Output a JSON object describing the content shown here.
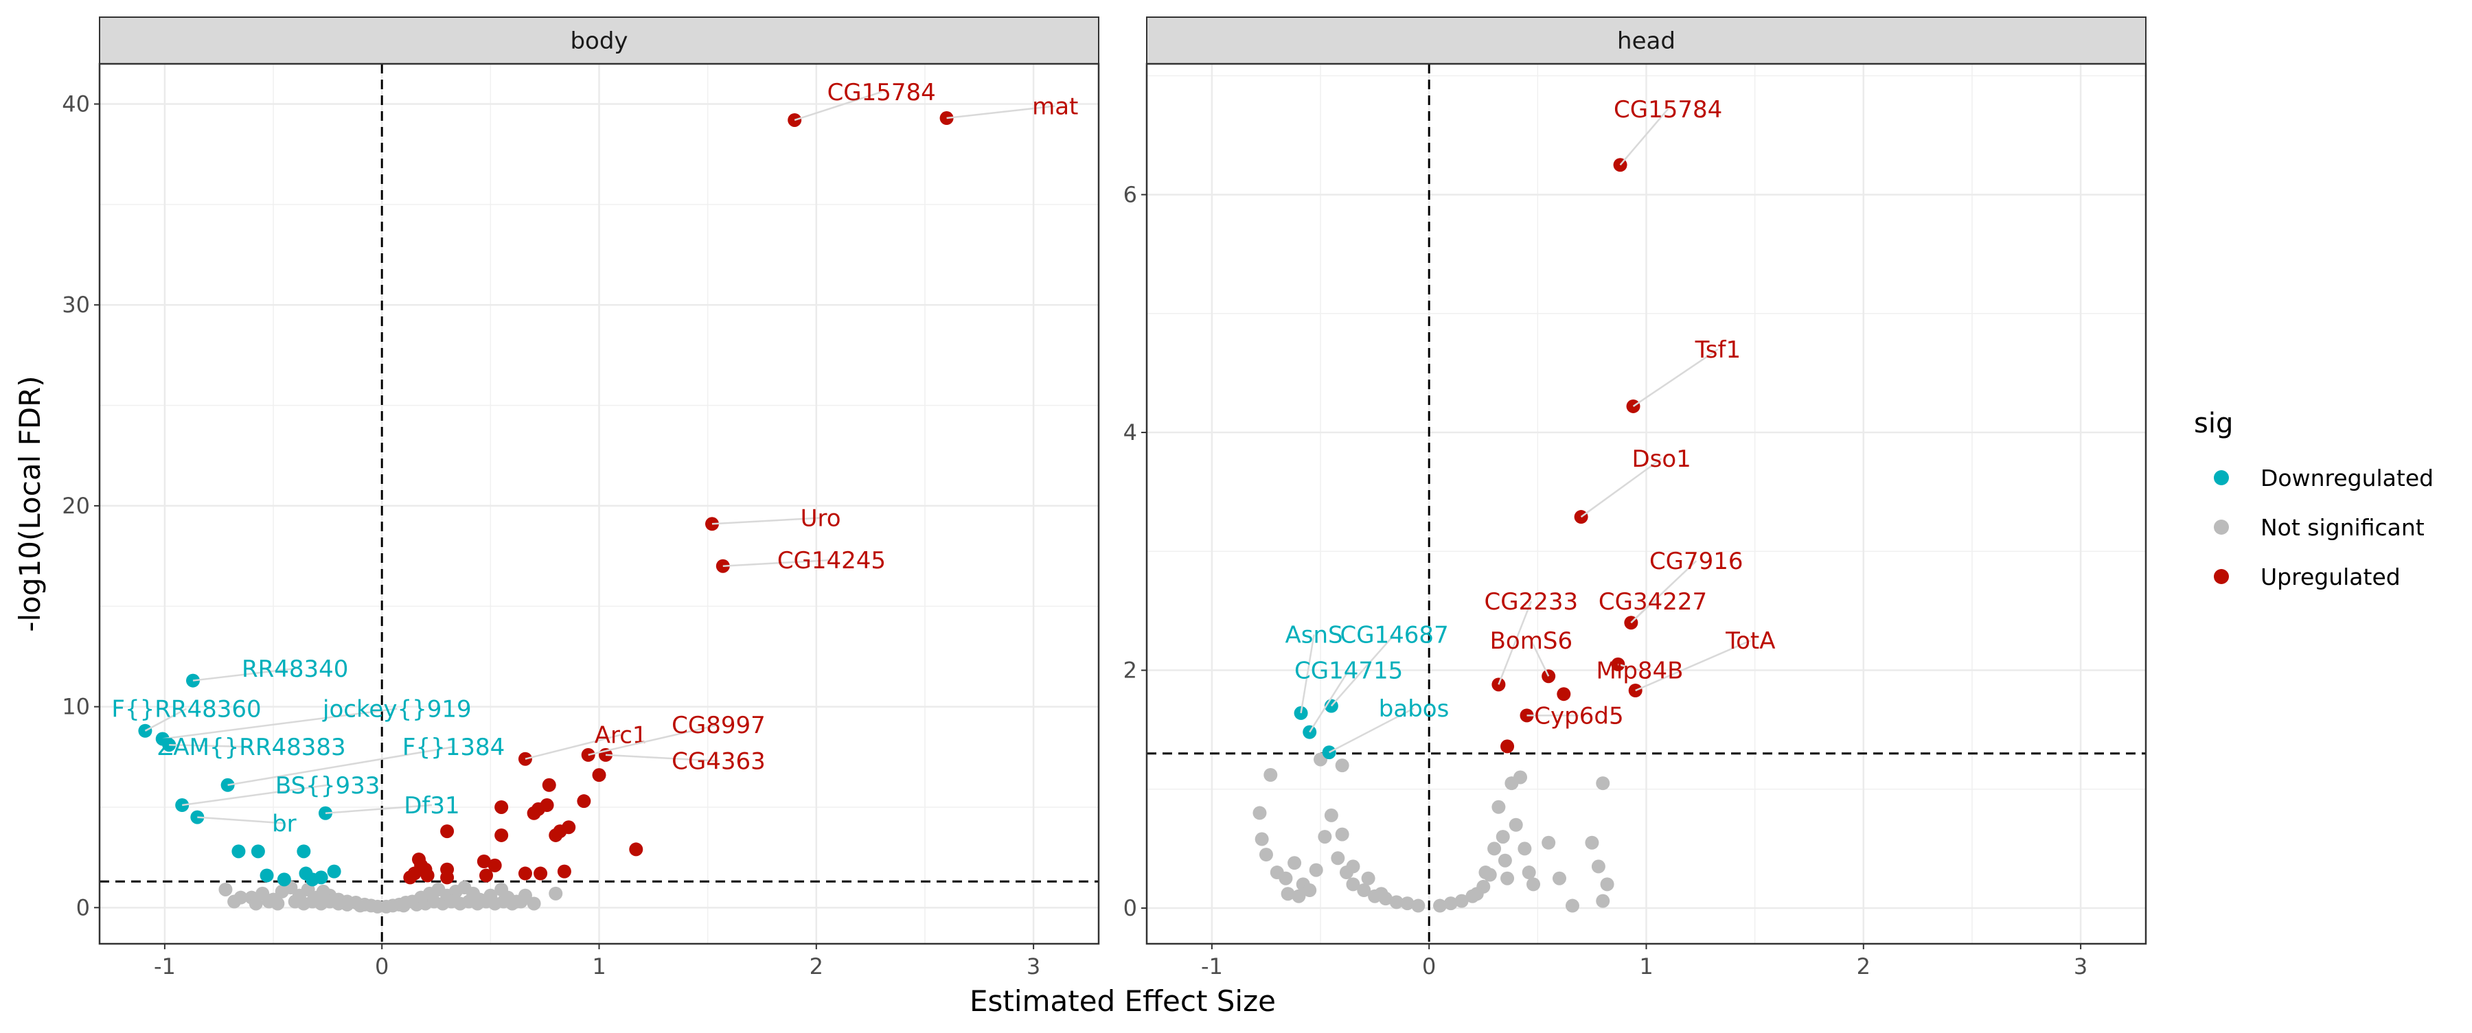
{
  "chart_data": {
    "type": "scatter",
    "xlabel": "Estimated Effect Size",
    "ylabel": "-log10(Local FDR)",
    "legend": {
      "title": "sig",
      "position": "right",
      "entries": [
        {
          "name": "Downregulated",
          "color": "#00AFBB"
        },
        {
          "name": "Not significant",
          "color": "#BBBBBB"
        },
        {
          "name": "Upregulated",
          "color": "#BB0C00"
        }
      ]
    },
    "grid": true,
    "reference_lines": {
      "vertical_x": 0,
      "horizontal_y": 1.3
    },
    "panels": [
      {
        "strip": "body",
        "xlim": [
          -1.3,
          3.3
        ],
        "ylim": [
          -1.8,
          42
        ],
        "xticks": [
          "-1",
          "0",
          "1",
          "2",
          "3"
        ],
        "yticks": [
          "0",
          "10",
          "20",
          "30",
          "40"
        ],
        "xtick_values": [
          -1,
          0,
          1,
          2,
          3
        ],
        "ytick_values": [
          0,
          10,
          20,
          30,
          40
        ],
        "points": {
          "Upregulated": [
            [
              1.9,
              39.2
            ],
            [
              2.6,
              39.3
            ],
            [
              1.52,
              19.1
            ],
            [
              1.57,
              17.0
            ],
            [
              0.95,
              7.6
            ],
            [
              1.03,
              7.6
            ],
            [
              0.66,
              7.4
            ],
            [
              0.77,
              6.1
            ],
            [
              0.86,
              4.0
            ],
            [
              0.82,
              3.8
            ],
            [
              0.76,
              5.1
            ],
            [
              0.7,
              4.7
            ],
            [
              0.72,
              4.9
            ],
            [
              0.8,
              3.6
            ],
            [
              0.93,
              5.3
            ],
            [
              1.0,
              6.6
            ],
            [
              0.55,
              5.0
            ],
            [
              0.55,
              3.6
            ],
            [
              0.3,
              3.8
            ],
            [
              0.17,
              2.4
            ],
            [
              0.18,
              2.1
            ],
            [
              0.2,
              1.9
            ],
            [
              0.15,
              1.7
            ],
            [
              0.3,
              1.9
            ],
            [
              0.47,
              2.3
            ],
            [
              0.52,
              2.1
            ],
            [
              0.48,
              1.6
            ],
            [
              0.66,
              1.7
            ],
            [
              0.73,
              1.7
            ],
            [
              0.84,
              1.8
            ],
            [
              1.17,
              2.9
            ],
            [
              0.3,
              1.5
            ],
            [
              0.13,
              1.5
            ],
            [
              0.21,
              1.6
            ]
          ],
          "Downregulated": [
            [
              -0.87,
              11.3
            ],
            [
              -1.09,
              8.8
            ],
            [
              -1.01,
              8.4
            ],
            [
              -0.98,
              8.1
            ],
            [
              -0.71,
              6.1
            ],
            [
              -0.92,
              5.1
            ],
            [
              -0.85,
              4.5
            ],
            [
              -0.26,
              4.7
            ],
            [
              -0.66,
              2.8
            ],
            [
              -0.57,
              2.8
            ],
            [
              -0.36,
              2.8
            ],
            [
              -0.53,
              1.6
            ],
            [
              -0.35,
              1.7
            ],
            [
              -0.22,
              1.8
            ],
            [
              -0.32,
              1.4
            ],
            [
              -0.28,
              1.5
            ],
            [
              -0.45,
              1.4
            ]
          ],
          "Not significant": [
            [
              -0.72,
              0.9
            ],
            [
              -0.68,
              0.3
            ],
            [
              -0.6,
              0.5
            ],
            [
              -0.55,
              0.7
            ],
            [
              -0.5,
              0.4
            ],
            [
              -0.46,
              0.8
            ],
            [
              -0.42,
              1.0
            ],
            [
              -0.38,
              0.6
            ],
            [
              -0.34,
              0.9
            ],
            [
              -0.3,
              0.5
            ],
            [
              -0.27,
              0.8
            ],
            [
              -0.24,
              0.6
            ],
            [
              -0.2,
              0.4
            ],
            [
              -0.16,
              0.3
            ],
            [
              -0.12,
              0.25
            ],
            [
              -0.08,
              0.15
            ],
            [
              -0.05,
              0.1
            ],
            [
              -0.02,
              0.05
            ],
            [
              0.02,
              0.05
            ],
            [
              0.05,
              0.1
            ],
            [
              0.08,
              0.15
            ],
            [
              0.11,
              0.25
            ],
            [
              0.14,
              0.3
            ],
            [
              0.18,
              0.5
            ],
            [
              0.22,
              0.7
            ],
            [
              0.26,
              0.9
            ],
            [
              0.3,
              0.6
            ],
            [
              0.34,
              0.8
            ],
            [
              0.38,
              1.0
            ],
            [
              0.42,
              0.7
            ],
            [
              0.45,
              0.4
            ],
            [
              0.5,
              0.6
            ],
            [
              0.55,
              0.9
            ],
            [
              0.58,
              0.5
            ],
            [
              0.62,
              0.3
            ],
            [
              0.66,
              0.6
            ],
            [
              0.7,
              0.2
            ],
            [
              0.8,
              0.7
            ],
            [
              -0.65,
              0.5
            ],
            [
              -0.58,
              0.2
            ],
            [
              -0.52,
              0.3
            ],
            [
              -0.48,
              0.2
            ],
            [
              -0.4,
              0.3
            ],
            [
              -0.36,
              0.2
            ],
            [
              -0.32,
              0.3
            ],
            [
              -0.28,
              0.2
            ],
            [
              -0.24,
              0.3
            ],
            [
              -0.2,
              0.2
            ],
            [
              -0.16,
              0.15
            ],
            [
              -0.1,
              0.1
            ],
            [
              0.1,
              0.1
            ],
            [
              0.16,
              0.15
            ],
            [
              0.2,
              0.2
            ],
            [
              0.24,
              0.3
            ],
            [
              0.28,
              0.2
            ],
            [
              0.32,
              0.3
            ],
            [
              0.36,
              0.2
            ],
            [
              0.4,
              0.3
            ],
            [
              0.44,
              0.2
            ],
            [
              0.48,
              0.3
            ],
            [
              0.52,
              0.2
            ],
            [
              0.56,
              0.3
            ],
            [
              0.6,
              0.2
            ],
            [
              0.64,
              0.3
            ]
          ]
        },
        "labels": [
          {
            "text": "CG15784",
            "color": "#BB0C00",
            "x": 1.9,
            "y": 39.2,
            "lx": 2.3,
            "ly": 40.6
          },
          {
            "text": "mat",
            "color": "#BB0C00",
            "x": 2.6,
            "y": 39.3,
            "lx": 3.1,
            "ly": 39.9
          },
          {
            "text": "Uro",
            "color": "#BB0C00",
            "x": 1.52,
            "y": 19.1,
            "lx": 2.02,
            "ly": 19.4
          },
          {
            "text": "CG14245",
            "color": "#BB0C00",
            "x": 1.57,
            "y": 17.0,
            "lx": 2.07,
            "ly": 17.3
          },
          {
            "text": "Arc1",
            "color": "#BB0C00",
            "x": 0.66,
            "y": 7.4,
            "lx": 1.1,
            "ly": 8.6
          },
          {
            "text": "CG8997",
            "color": "#BB0C00",
            "x": 0.95,
            "y": 7.6,
            "lx": 1.55,
            "ly": 9.1
          },
          {
            "text": "CG4363",
            "color": "#BB0C00",
            "x": 1.03,
            "y": 7.6,
            "lx": 1.55,
            "ly": 7.3
          },
          {
            "text": "RR48340",
            "color": "#00AFBB",
            "x": -0.87,
            "y": 11.3,
            "lx": -0.4,
            "ly": 11.9
          },
          {
            "text": "F{}RR48360",
            "color": "#00AFBB",
            "x": -1.09,
            "y": 8.8,
            "lx": -0.9,
            "ly": 9.9
          },
          {
            "text": "jockey{}919",
            "color": "#00AFBB",
            "x": -1.01,
            "y": 8.4,
            "lx": 0.07,
            "ly": 9.9
          },
          {
            "text": "ZAM{}RR48383",
            "color": "#00AFBB",
            "x": -0.98,
            "y": 8.1,
            "lx": -0.6,
            "ly": 8.0
          },
          {
            "text": "F{}1384",
            "color": "#00AFBB",
            "x": -0.71,
            "y": 6.1,
            "lx": 0.33,
            "ly": 8.0
          },
          {
            "text": "BS{}933",
            "color": "#00AFBB",
            "x": -0.92,
            "y": 5.1,
            "lx": -0.25,
            "ly": 6.1
          },
          {
            "text": "br",
            "color": "#00AFBB",
            "x": -0.85,
            "y": 4.5,
            "lx": -0.45,
            "ly": 4.2
          },
          {
            "text": "Df31",
            "color": "#00AFBB",
            "x": -0.26,
            "y": 4.7,
            "lx": 0.23,
            "ly": 5.1
          }
        ]
      },
      {
        "strip": "head",
        "xlim": [
          -1.3,
          3.3
        ],
        "ylim": [
          -0.3,
          7.1
        ],
        "xticks": [
          "-1",
          "0",
          "1",
          "2",
          "3"
        ],
        "yticks": [
          "0",
          "2",
          "4",
          "6"
        ],
        "xtick_values": [
          -1,
          0,
          1,
          2,
          3
        ],
        "ytick_values": [
          0,
          2,
          4,
          6
        ],
        "points": {
          "Upregulated": [
            [
              0.88,
              6.25
            ],
            [
              0.94,
              4.22
            ],
            [
              0.7,
              3.29
            ],
            [
              0.93,
              2.4
            ],
            [
              0.87,
              2.05
            ],
            [
              0.95,
              1.83
            ],
            [
              0.55,
              1.95
            ],
            [
              0.62,
              1.8
            ],
            [
              0.45,
              1.62
            ],
            [
              0.32,
              1.88
            ],
            [
              0.36,
              1.36
            ]
          ],
          "Downregulated": [
            [
              -0.59,
              1.64
            ],
            [
              -0.55,
              1.48
            ],
            [
              -0.45,
              1.7
            ],
            [
              -0.46,
              1.31
            ]
          ],
          "Not significant": [
            [
              -0.73,
              1.12
            ],
            [
              -0.78,
              0.8
            ],
            [
              -0.77,
              0.58
            ],
            [
              -0.75,
              0.45
            ],
            [
              -0.7,
              0.3
            ],
            [
              -0.66,
              0.25
            ],
            [
              -0.62,
              0.38
            ],
            [
              -0.58,
              0.2
            ],
            [
              -0.52,
              0.32
            ],
            [
              -0.48,
              0.6
            ],
            [
              -0.45,
              0.78
            ],
            [
              -0.42,
              0.42
            ],
            [
              -0.4,
              0.62
            ],
            [
              -0.38,
              0.3
            ],
            [
              -0.35,
              0.2
            ],
            [
              -0.3,
              0.15
            ],
            [
              -0.25,
              0.1
            ],
            [
              -0.2,
              0.08
            ],
            [
              -0.15,
              0.05
            ],
            [
              -0.1,
              0.04
            ],
            [
              -0.05,
              0.02
            ],
            [
              0.05,
              0.02
            ],
            [
              0.1,
              0.04
            ],
            [
              0.15,
              0.06
            ],
            [
              0.2,
              0.1
            ],
            [
              0.25,
              0.18
            ],
            [
              0.28,
              0.28
            ],
            [
              0.3,
              0.5
            ],
            [
              0.32,
              0.85
            ],
            [
              0.34,
              0.6
            ],
            [
              0.35,
              0.4
            ],
            [
              0.38,
              1.05
            ],
            [
              0.4,
              0.7
            ],
            [
              0.42,
              1.1
            ],
            [
              0.44,
              0.5
            ],
            [
              0.46,
              0.3
            ],
            [
              0.48,
              0.2
            ],
            [
              0.55,
              0.55
            ],
            [
              0.6,
              0.25
            ],
            [
              0.66,
              0.02
            ],
            [
              0.75,
              0.55
            ],
            [
              0.78,
              0.35
            ],
            [
              0.8,
              1.05
            ],
            [
              0.8,
              0.06
            ],
            [
              0.82,
              0.2
            ],
            [
              -0.5,
              1.25
            ],
            [
              -0.4,
              1.2
            ],
            [
              -0.55,
              0.15
            ],
            [
              -0.6,
              0.1
            ],
            [
              -0.65,
              0.12
            ],
            [
              -0.35,
              0.35
            ],
            [
              -0.28,
              0.25
            ],
            [
              -0.22,
              0.12
            ],
            [
              0.22,
              0.12
            ],
            [
              0.26,
              0.3
            ],
            [
              0.36,
              0.25
            ]
          ]
        },
        "labels": [
          {
            "text": "CG15784",
            "color": "#BB0C00",
            "x": 0.88,
            "y": 6.25,
            "lx": 1.1,
            "ly": 6.72
          },
          {
            "text": "Tsf1",
            "color": "#BB0C00",
            "x": 0.94,
            "y": 4.22,
            "lx": 1.33,
            "ly": 4.7
          },
          {
            "text": "Dso1",
            "color": "#BB0C00",
            "x": 0.7,
            "y": 3.29,
            "lx": 1.07,
            "ly": 3.78
          },
          {
            "text": "CG7916",
            "color": "#BB0C00",
            "x": 0.93,
            "y": 2.4,
            "lx": 1.23,
            "ly": 2.92
          },
          {
            "text": "CG2233",
            "color": "#BB0C00",
            "x": 0.32,
            "y": 1.88,
            "lx": 0.47,
            "ly": 2.58
          },
          {
            "text": "CG34227",
            "color": "#BB0C00",
            "x": 0.93,
            "y": 2.4,
            "lx": 1.03,
            "ly": 2.58
          },
          {
            "text": "TotA",
            "color": "#BB0C00",
            "x": 0.95,
            "y": 1.83,
            "lx": 1.48,
            "ly": 2.25
          },
          {
            "text": "BomS6",
            "color": "#BB0C00",
            "x": 0.55,
            "y": 1.95,
            "lx": 0.47,
            "ly": 2.25
          },
          {
            "text": "Mlp84B",
            "color": "#BB0C00",
            "x": 0.87,
            "y": 2.05,
            "lx": 0.97,
            "ly": 2.0
          },
          {
            "text": "Cyp6d5",
            "color": "#BB0C00",
            "x": 0.45,
            "y": 1.62,
            "lx": 0.69,
            "ly": 1.62
          },
          {
            "text": "AsnS",
            "color": "#00AFBB",
            "x": -0.59,
            "y": 1.64,
            "lx": -0.53,
            "ly": 2.3
          },
          {
            "text": "CG14687",
            "color": "#00AFBB",
            "x": -0.45,
            "y": 1.7,
            "lx": -0.16,
            "ly": 2.3
          },
          {
            "text": "CG14715",
            "color": "#00AFBB",
            "x": -0.55,
            "y": 1.48,
            "lx": -0.37,
            "ly": 2.0
          },
          {
            "text": "babos",
            "color": "#00AFBB",
            "x": -0.46,
            "y": 1.31,
            "lx": -0.07,
            "ly": 1.68
          }
        ]
      }
    ]
  }
}
